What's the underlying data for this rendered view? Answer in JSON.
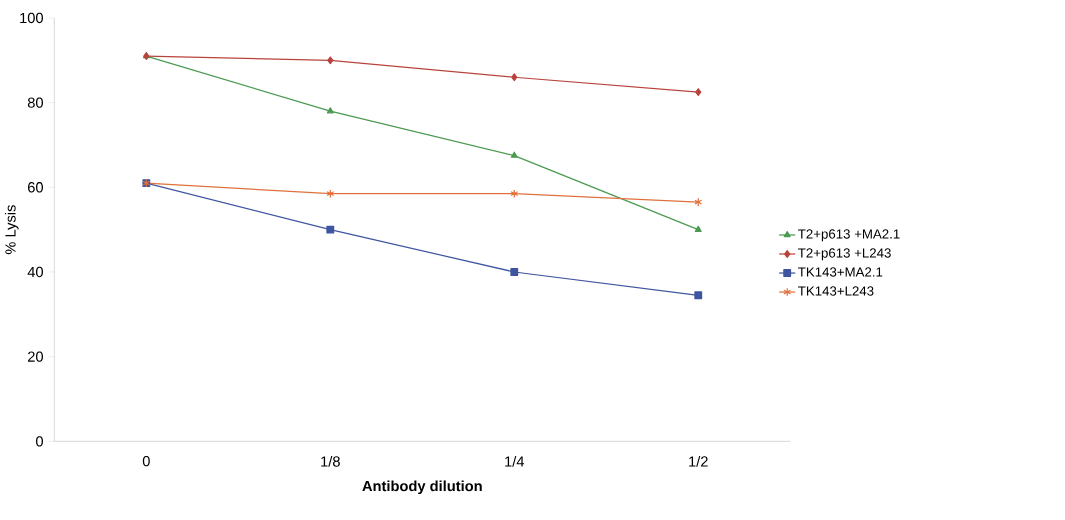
{
  "chart_data": {
    "type": "line",
    "xlabel": "Antibody dilution",
    "ylabel": "% Lysis",
    "categories": [
      "0",
      "1/8",
      "1/4",
      "1/2"
    ],
    "series": [
      {
        "name": "T2+p613 +MA2.1",
        "color": "#4a9a50",
        "marker": "triangle",
        "values": [
          91,
          78,
          67.5,
          50
        ]
      },
      {
        "name": "T2+p613 +L243",
        "color": "#b8433c",
        "marker": "diamond",
        "values": [
          91,
          90,
          86,
          82.5
        ]
      },
      {
        "name": "TK143+MA2.1",
        "color": "#3f55a0",
        "marker": "square",
        "values": [
          61,
          50,
          40,
          34.5
        ]
      },
      {
        "name": "TK143+L243",
        "color": "#e0703c",
        "marker": "cross",
        "values": [
          61,
          58.5,
          58.5,
          56.5
        ]
      }
    ],
    "ylim": [
      0,
      100
    ],
    "yticks": [
      0,
      20,
      40,
      60,
      80,
      100
    ],
    "legend": "right"
  }
}
